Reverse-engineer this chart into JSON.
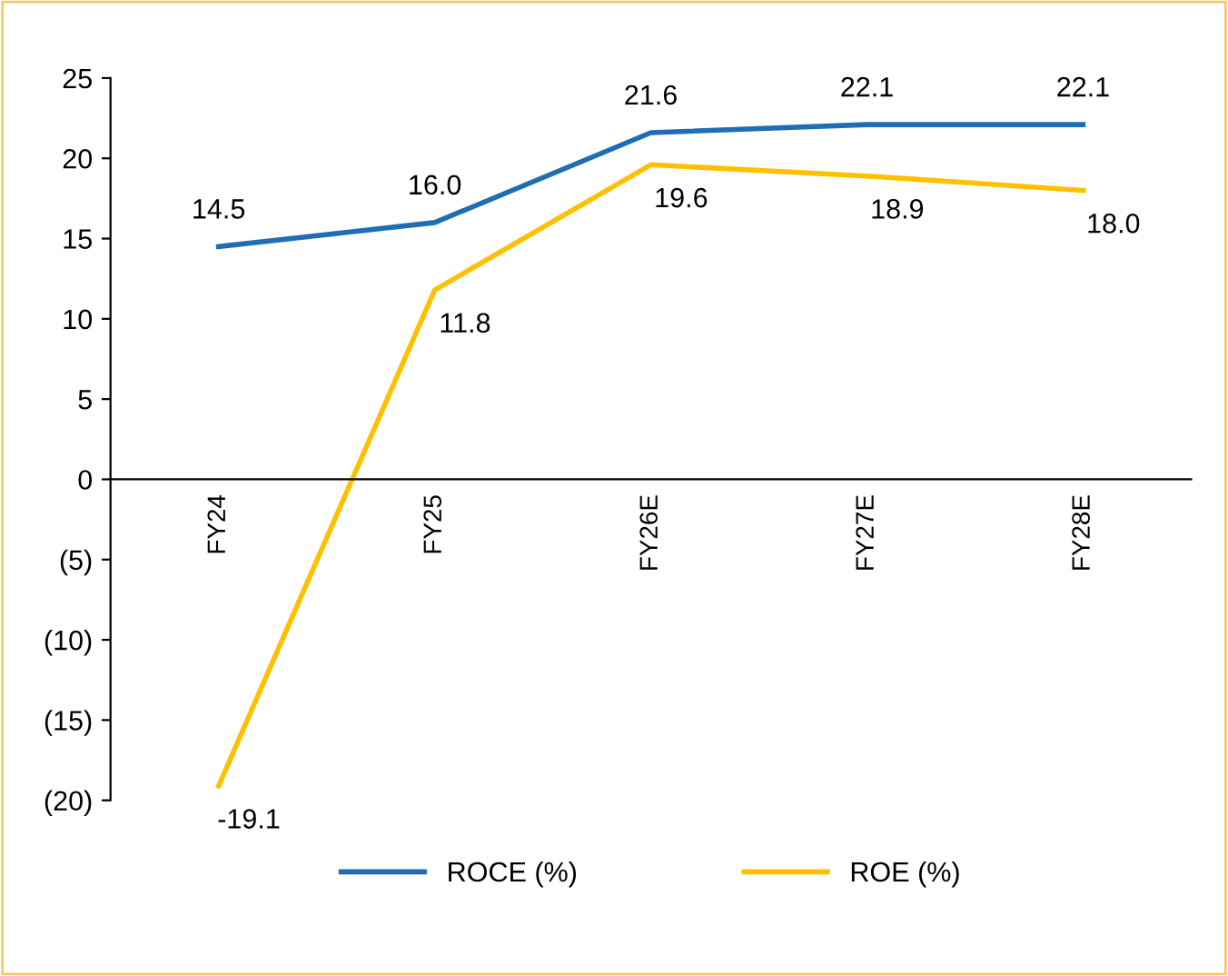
{
  "chart_data": {
    "type": "line",
    "categories": [
      "FY24",
      "FY25",
      "FY26E",
      "FY27E",
      "FY28E"
    ],
    "series": [
      {
        "name": "ROCE (%)",
        "color": "#1f6eb4",
        "values": [
          14.5,
          16.0,
          21.6,
          22.1,
          22.1
        ],
        "value_labels": [
          "14.5",
          "16.0",
          "21.6",
          "22.1",
          "22.1"
        ]
      },
      {
        "name": "ROE (%)",
        "color": "#ffc000",
        "values": [
          -19.1,
          11.8,
          19.6,
          18.9,
          18.0
        ],
        "value_labels": [
          "-19.1",
          "11.8",
          "19.6",
          "18.9",
          "18.0"
        ]
      }
    ],
    "ylim": [
      -20,
      25
    ],
    "yticks": [
      25,
      20,
      15,
      10,
      5,
      0,
      {
        "value": -5,
        "label": "(5)"
      },
      {
        "value": -10,
        "label": "(10)"
      },
      {
        "value": -15,
        "label": "(15)"
      },
      {
        "value": -20,
        "label": "(20)"
      }
    ],
    "legend": "bottom"
  }
}
